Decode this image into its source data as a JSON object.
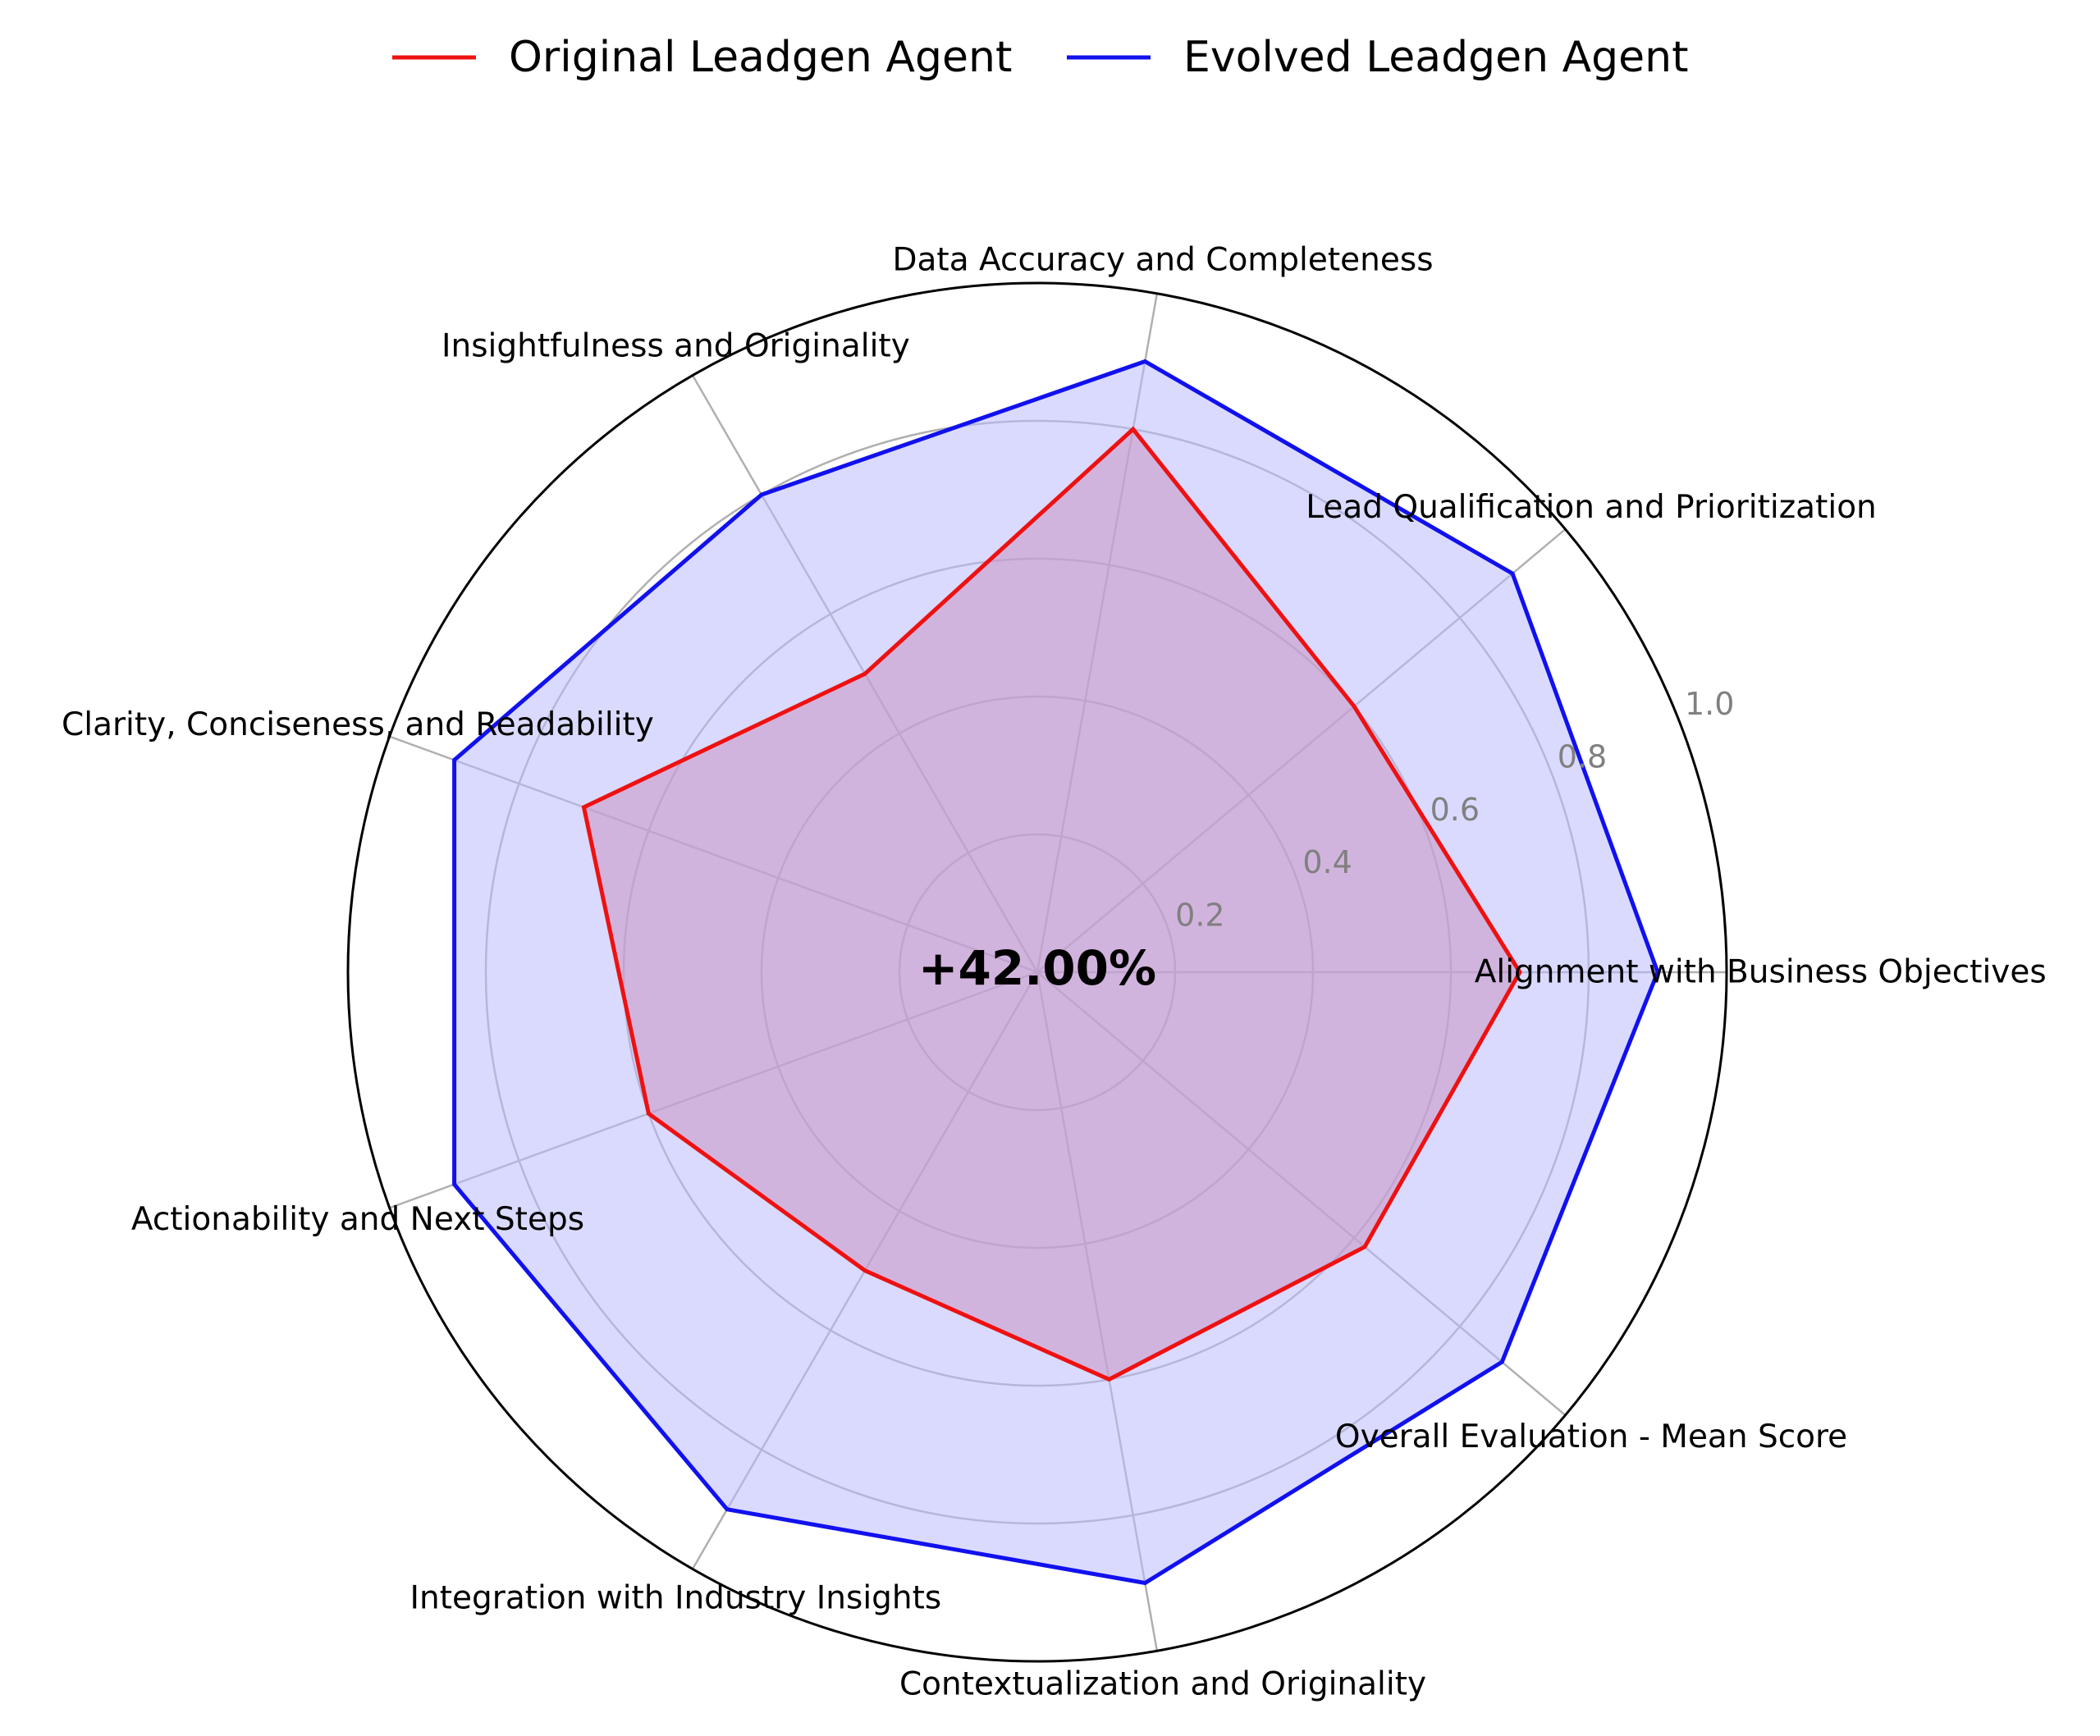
{
  "chart_data": {
    "type": "radar",
    "categories": [
      "Alignment with Business Objectives",
      "Lead Qualification and Prioritization",
      "Data Accuracy and Completeness",
      "Insightfulness and Originality",
      "Clarity, Conciseness, and Readability",
      "Actionability and Next Steps",
      "Integration with Industry Insights",
      "Contextualization and Originality",
      "Overall Evaluation - Mean Score"
    ],
    "series": [
      {
        "name": "Original Leadgen Agent",
        "color": "#ee1111",
        "fill": "#dd6677",
        "values": [
          0.7,
          0.6,
          0.8,
          0.5,
          0.7,
          0.6,
          0.5,
          0.6,
          0.62
        ]
      },
      {
        "name": "Evolved Leadgen Agent",
        "color": "#1111ee",
        "fill": "#bbbbff",
        "values": [
          0.9,
          0.9,
          0.9,
          0.8,
          0.9,
          0.9,
          0.9,
          0.9,
          0.88
        ]
      }
    ],
    "rlim": [
      0,
      1.0
    ],
    "rticks": [
      0.2,
      0.4,
      0.6,
      0.8,
      1.0
    ],
    "rtick_labels": [
      "0.2",
      "0.4",
      "0.6",
      "0.8",
      "1.0"
    ],
    "center_annotation": "+42.00%",
    "legend_position": "top-center",
    "grid": true
  }
}
